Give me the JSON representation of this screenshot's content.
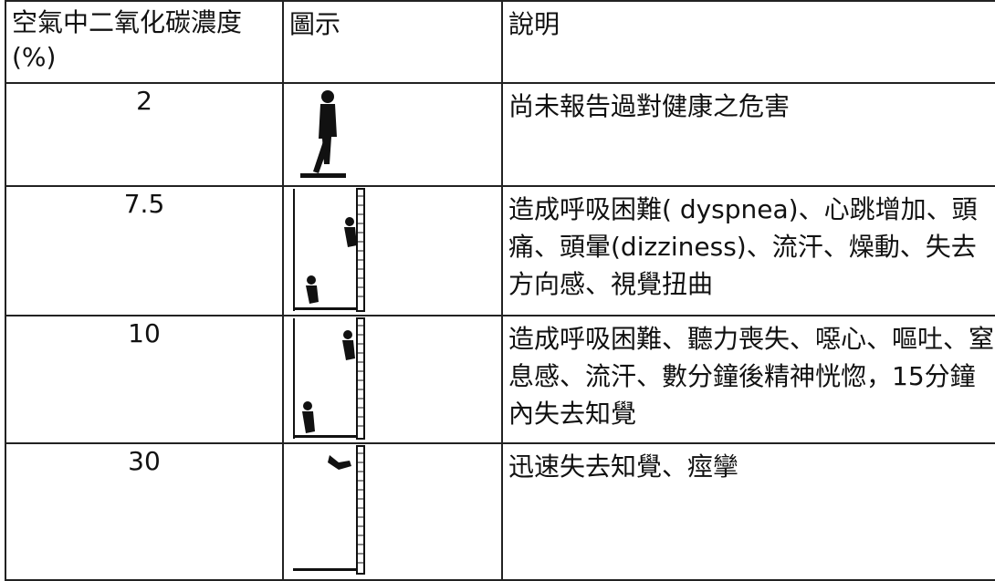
{
  "table": {
    "header": [
      "空氣中二氧化碳濃度(%)",
      "圖示",
      "說明"
    ],
    "rows": [
      [
        "2",
        "尚未報告過對健康之危害"
      ],
      [
        "7.5",
        "造成呼吸困難( dyspnea)、心跳增加、頭痛、頭暈(dizziness)、流汗、燥動、失去方向感、視覺扭曲"
      ],
      [
        "10",
        "造成呼吸困難、聽力喪失、噁心、嘔吐、窒息感、流汗、數分鐘後精神恍惚，15分鐘內失去知覺"
      ],
      [
        "30",
        "迅速失去知覺、痙攣"
      ]
    ]
  }
}
